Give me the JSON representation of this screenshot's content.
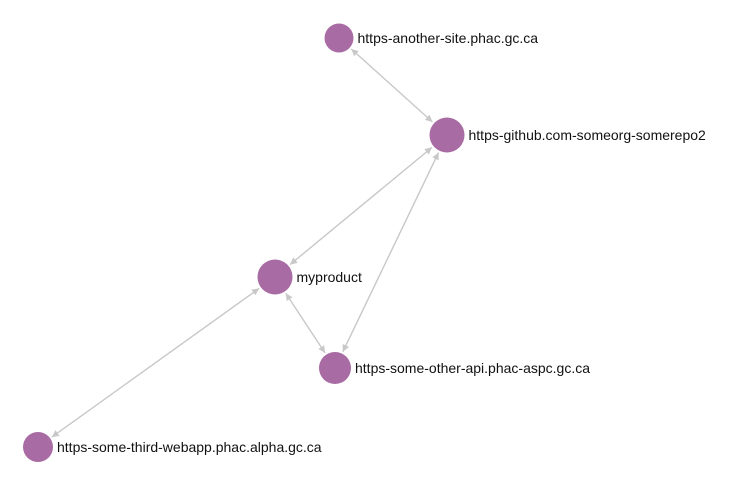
{
  "graph": {
    "node_color": "#a86ba3",
    "edge_color": "#c8c8c8",
    "label_color": "#111111",
    "nodes": [
      {
        "id": "another-site",
        "label": "https-another-site.phac.gc.ca"
      },
      {
        "id": "github",
        "label": "https-github.com-someorg-somerepo2"
      },
      {
        "id": "myproduct",
        "label": "myproduct"
      },
      {
        "id": "other-api",
        "label": "https-some-other-api.phac-aspc.gc.ca"
      },
      {
        "id": "third-webapp",
        "label": "https-some-third-webapp.phac.alpha.gc.ca"
      }
    ],
    "edges": [
      {
        "from": "another-site",
        "to": "github",
        "direction": "both"
      },
      {
        "from": "github",
        "to": "myproduct",
        "direction": "both"
      },
      {
        "from": "github",
        "to": "other-api",
        "direction": "both"
      },
      {
        "from": "myproduct",
        "to": "other-api",
        "direction": "both"
      },
      {
        "from": "myproduct",
        "to": "third-webapp",
        "direction": "both"
      }
    ]
  }
}
